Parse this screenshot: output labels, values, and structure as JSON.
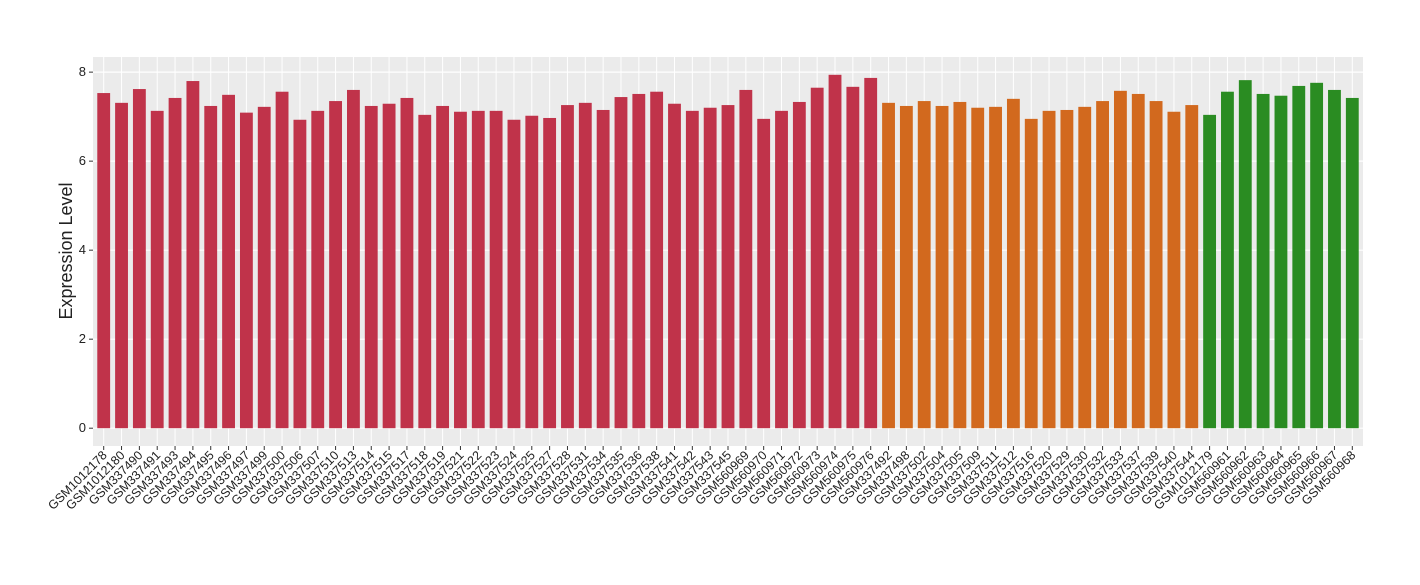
{
  "chart_data": {
    "type": "bar",
    "y_label": "Expression Level",
    "categories": [
      "GSM1012178",
      "GSM1012180",
      "GSM337490",
      "GSM337491",
      "GSM337493",
      "GSM337494",
      "GSM337495",
      "GSM337496",
      "GSM337497",
      "GSM337499",
      "GSM337500",
      "GSM337506",
      "GSM337507",
      "GSM337510",
      "GSM337513",
      "GSM337514",
      "GSM337515",
      "GSM337517",
      "GSM337518",
      "GSM337519",
      "GSM337521",
      "GSM337522",
      "GSM337523",
      "GSM337524",
      "GSM337525",
      "GSM337527",
      "GSM337528",
      "GSM337531",
      "GSM337534",
      "GSM337535",
      "GSM337536",
      "GSM337538",
      "GSM337541",
      "GSM337542",
      "GSM337543",
      "GSM337545",
      "GSM560969",
      "GSM560970",
      "GSM560971",
      "GSM560972",
      "GSM560973",
      "GSM560974",
      "GSM560975",
      "GSM560976",
      "GSM337492",
      "GSM337498",
      "GSM337502",
      "GSM337504",
      "GSM337505",
      "GSM337509",
      "GSM337511",
      "GSM337512",
      "GSM337516",
      "GSM337520",
      "GSM337529",
      "GSM337530",
      "GSM337532",
      "GSM337533",
      "GSM337537",
      "GSM337539",
      "GSM337540",
      "GSM337544",
      "GSM1012179",
      "GSM560961",
      "GSM560962",
      "GSM560963",
      "GSM560964",
      "GSM560965",
      "GSM560966",
      "GSM560967",
      "GSM560968"
    ],
    "values": [
      7.53,
      7.31,
      7.62,
      7.13,
      7.42,
      7.8,
      7.24,
      7.49,
      7.09,
      7.22,
      7.56,
      6.93,
      7.13,
      7.35,
      7.6,
      7.24,
      7.29,
      7.42,
      7.04,
      7.24,
      7.11,
      7.13,
      7.13,
      6.93,
      7.02,
      6.97,
      7.26,
      7.31,
      7.15,
      7.44,
      7.51,
      7.56,
      7.29,
      7.13,
      7.2,
      7.26,
      7.6,
      6.95,
      7.13,
      7.33,
      7.65,
      7.94,
      7.67,
      7.87,
      7.31,
      7.24,
      7.35,
      7.24,
      7.33,
      7.2,
      7.22,
      7.4,
      6.95,
      7.13,
      7.15,
      7.22,
      7.35,
      7.58,
      7.51,
      7.35,
      7.11,
      7.26,
      7.04,
      7.56,
      7.82,
      7.51,
      7.47,
      7.69,
      7.76,
      7.6,
      7.42
    ],
    "colors": [
      "#c0334a",
      "#c0334a",
      "#c0334a",
      "#c0334a",
      "#c0334a",
      "#c0334a",
      "#c0334a",
      "#c0334a",
      "#c0334a",
      "#c0334a",
      "#c0334a",
      "#c0334a",
      "#c0334a",
      "#c0334a",
      "#c0334a",
      "#c0334a",
      "#c0334a",
      "#c0334a",
      "#c0334a",
      "#c0334a",
      "#c0334a",
      "#c0334a",
      "#c0334a",
      "#c0334a",
      "#c0334a",
      "#c0334a",
      "#c0334a",
      "#c0334a",
      "#c0334a",
      "#c0334a",
      "#c0334a",
      "#c0334a",
      "#c0334a",
      "#c0334a",
      "#c0334a",
      "#c0334a",
      "#c0334a",
      "#c0334a",
      "#c0334a",
      "#c0334a",
      "#c0334a",
      "#c0334a",
      "#c0334a",
      "#c0334a",
      "#d2691e",
      "#d2691e",
      "#d2691e",
      "#d2691e",
      "#d2691e",
      "#d2691e",
      "#d2691e",
      "#d2691e",
      "#d2691e",
      "#d2691e",
      "#d2691e",
      "#d2691e",
      "#d2691e",
      "#d2691e",
      "#d2691e",
      "#d2691e",
      "#d2691e",
      "#d2691e",
      "#2a8c22",
      "#2a8c22",
      "#2a8c22",
      "#2a8c22",
      "#2a8c22",
      "#2a8c22",
      "#2a8c22",
      "#2a8c22",
      "#2a8c22"
    ],
    "ylim": [
      -0.4,
      8.34
    ],
    "yticks": [
      0,
      2,
      4,
      6,
      8
    ],
    "grid": true
  }
}
